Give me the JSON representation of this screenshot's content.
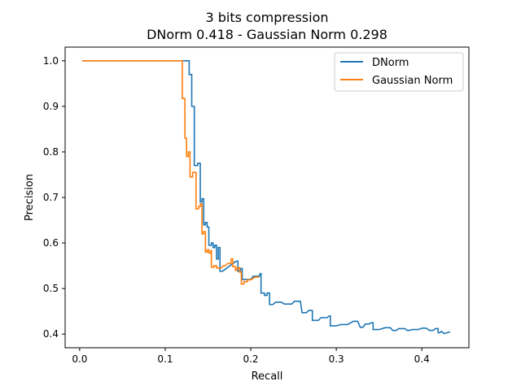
{
  "chart_data": {
    "type": "line",
    "title": "3 bits compression",
    "subtitle": "DNorm 0.418 - Gaussian Norm 0.298",
    "xlabel": "Recall",
    "ylabel": "Precision",
    "xlim": [
      -0.017,
      0.455
    ],
    "ylim": [
      0.37,
      1.03
    ],
    "xticks": [
      0.0,
      0.1,
      0.2,
      0.3,
      0.4
    ],
    "xtick_labels": [
      "0.0",
      "0.1",
      "0.2",
      "0.3",
      "0.4"
    ],
    "yticks": [
      0.4,
      0.5,
      0.6,
      0.7,
      0.8,
      0.9,
      1.0
    ],
    "ytick_labels": [
      "0.4",
      "0.5",
      "0.6",
      "0.7",
      "0.8",
      "0.9",
      "1.0"
    ],
    "grid": false,
    "legend": "top-right",
    "series": [
      {
        "name": "DNorm",
        "color": "#1f77b4",
        "points": [
          [
            0.003,
            1.0
          ],
          [
            0.128,
            1.0
          ],
          [
            0.128,
            0.97
          ],
          [
            0.131,
            0.97
          ],
          [
            0.131,
            0.9
          ],
          [
            0.134,
            0.9
          ],
          [
            0.134,
            0.77
          ],
          [
            0.138,
            0.77
          ],
          [
            0.138,
            0.775
          ],
          [
            0.141,
            0.775
          ],
          [
            0.141,
            0.69
          ],
          [
            0.143,
            0.69
          ],
          [
            0.143,
            0.697
          ],
          [
            0.145,
            0.697
          ],
          [
            0.145,
            0.64
          ],
          [
            0.147,
            0.64
          ],
          [
            0.147,
            0.645
          ],
          [
            0.149,
            0.645
          ],
          [
            0.149,
            0.635
          ],
          [
            0.151,
            0.635
          ],
          [
            0.151,
            0.595
          ],
          [
            0.154,
            0.595
          ],
          [
            0.154,
            0.6
          ],
          [
            0.156,
            0.6
          ],
          [
            0.156,
            0.59
          ],
          [
            0.158,
            0.59
          ],
          [
            0.158,
            0.595
          ],
          [
            0.16,
            0.595
          ],
          [
            0.16,
            0.565
          ],
          [
            0.162,
            0.565
          ],
          [
            0.162,
            0.59
          ],
          [
            0.164,
            0.59
          ],
          [
            0.164,
            0.538
          ],
          [
            0.167,
            0.538
          ],
          [
            0.183,
            0.56
          ],
          [
            0.185,
            0.56
          ],
          [
            0.185,
            0.538
          ],
          [
            0.188,
            0.538
          ],
          [
            0.188,
            0.544
          ],
          [
            0.19,
            0.544
          ],
          [
            0.19,
            0.52
          ],
          [
            0.2,
            0.52
          ],
          [
            0.203,
            0.527
          ],
          [
            0.21,
            0.527
          ],
          [
            0.211,
            0.533
          ],
          [
            0.212,
            0.533
          ],
          [
            0.212,
            0.49
          ],
          [
            0.216,
            0.49
          ],
          [
            0.216,
            0.485
          ],
          [
            0.219,
            0.485
          ],
          [
            0.219,
            0.49
          ],
          [
            0.222,
            0.49
          ],
          [
            0.222,
            0.465
          ],
          [
            0.226,
            0.465
          ],
          [
            0.229,
            0.47
          ],
          [
            0.236,
            0.47
          ],
          [
            0.239,
            0.466
          ],
          [
            0.248,
            0.466
          ],
          [
            0.251,
            0.472
          ],
          [
            0.258,
            0.472
          ],
          [
            0.26,
            0.447
          ],
          [
            0.265,
            0.447
          ],
          [
            0.268,
            0.452
          ],
          [
            0.272,
            0.452
          ],
          [
            0.272,
            0.43
          ],
          [
            0.279,
            0.43
          ],
          [
            0.282,
            0.436
          ],
          [
            0.289,
            0.436
          ],
          [
            0.292,
            0.44
          ],
          [
            0.293,
            0.44
          ],
          [
            0.293,
            0.418
          ],
          [
            0.3,
            0.418
          ],
          [
            0.305,
            0.421
          ],
          [
            0.313,
            0.421
          ],
          [
            0.32,
            0.428
          ],
          [
            0.325,
            0.428
          ],
          [
            0.328,
            0.415
          ],
          [
            0.331,
            0.415
          ],
          [
            0.334,
            0.422
          ],
          [
            0.338,
            0.422
          ],
          [
            0.341,
            0.425
          ],
          [
            0.343,
            0.425
          ],
          [
            0.343,
            0.41
          ],
          [
            0.35,
            0.41
          ],
          [
            0.357,
            0.414
          ],
          [
            0.363,
            0.414
          ],
          [
            0.366,
            0.408
          ],
          [
            0.37,
            0.408
          ],
          [
            0.373,
            0.412
          ],
          [
            0.38,
            0.412
          ],
          [
            0.383,
            0.408
          ],
          [
            0.385,
            0.408
          ],
          [
            0.389,
            0.41
          ],
          [
            0.396,
            0.41
          ],
          [
            0.4,
            0.413
          ],
          [
            0.405,
            0.413
          ],
          [
            0.409,
            0.408
          ],
          [
            0.413,
            0.408
          ],
          [
            0.416,
            0.412
          ],
          [
            0.419,
            0.412
          ],
          [
            0.419,
            0.403
          ],
          [
            0.421,
            0.403
          ],
          [
            0.423,
            0.406
          ],
          [
            0.426,
            0.401
          ],
          [
            0.433,
            0.405
          ]
        ]
      },
      {
        "name": "Gaussian Norm",
        "color": "#ff7f0e",
        "points": [
          [
            0.003,
            1.0
          ],
          [
            0.12,
            1.0
          ],
          [
            0.12,
            0.917
          ],
          [
            0.123,
            0.917
          ],
          [
            0.123,
            0.83
          ],
          [
            0.125,
            0.83
          ],
          [
            0.125,
            0.79
          ],
          [
            0.127,
            0.79
          ],
          [
            0.127,
            0.8
          ],
          [
            0.129,
            0.8
          ],
          [
            0.129,
            0.745
          ],
          [
            0.132,
            0.745
          ],
          [
            0.132,
            0.755
          ],
          [
            0.136,
            0.755
          ],
          [
            0.136,
            0.675
          ],
          [
            0.139,
            0.675
          ],
          [
            0.139,
            0.68
          ],
          [
            0.141,
            0.68
          ],
          [
            0.141,
            0.686
          ],
          [
            0.143,
            0.686
          ],
          [
            0.143,
            0.62
          ],
          [
            0.145,
            0.62
          ],
          [
            0.145,
            0.625
          ],
          [
            0.147,
            0.625
          ],
          [
            0.147,
            0.58
          ],
          [
            0.149,
            0.58
          ],
          [
            0.149,
            0.585
          ],
          [
            0.151,
            0.585
          ],
          [
            0.151,
            0.578
          ],
          [
            0.153,
            0.578
          ],
          [
            0.153,
            0.583
          ],
          [
            0.154,
            0.583
          ],
          [
            0.154,
            0.547
          ],
          [
            0.157,
            0.547
          ],
          [
            0.157,
            0.55
          ],
          [
            0.16,
            0.55
          ],
          [
            0.16,
            0.545
          ],
          [
            0.165,
            0.545
          ],
          [
            0.168,
            0.55
          ],
          [
            0.17,
            0.55
          ],
          [
            0.173,
            0.555
          ],
          [
            0.177,
            0.555
          ],
          [
            0.177,
            0.565
          ],
          [
            0.179,
            0.565
          ],
          [
            0.179,
            0.548
          ],
          [
            0.182,
            0.548
          ],
          [
            0.182,
            0.54
          ],
          [
            0.184,
            0.54
          ],
          [
            0.184,
            0.546
          ],
          [
            0.187,
            0.546
          ],
          [
            0.187,
            0.536
          ],
          [
            0.189,
            0.536
          ],
          [
            0.189,
            0.51
          ],
          [
            0.192,
            0.51
          ],
          [
            0.192,
            0.515
          ],
          [
            0.196,
            0.515
          ],
          [
            0.196,
            0.519
          ],
          [
            0.2,
            0.519
          ],
          [
            0.205,
            0.525
          ],
          [
            0.21,
            0.525
          ]
        ]
      }
    ]
  }
}
